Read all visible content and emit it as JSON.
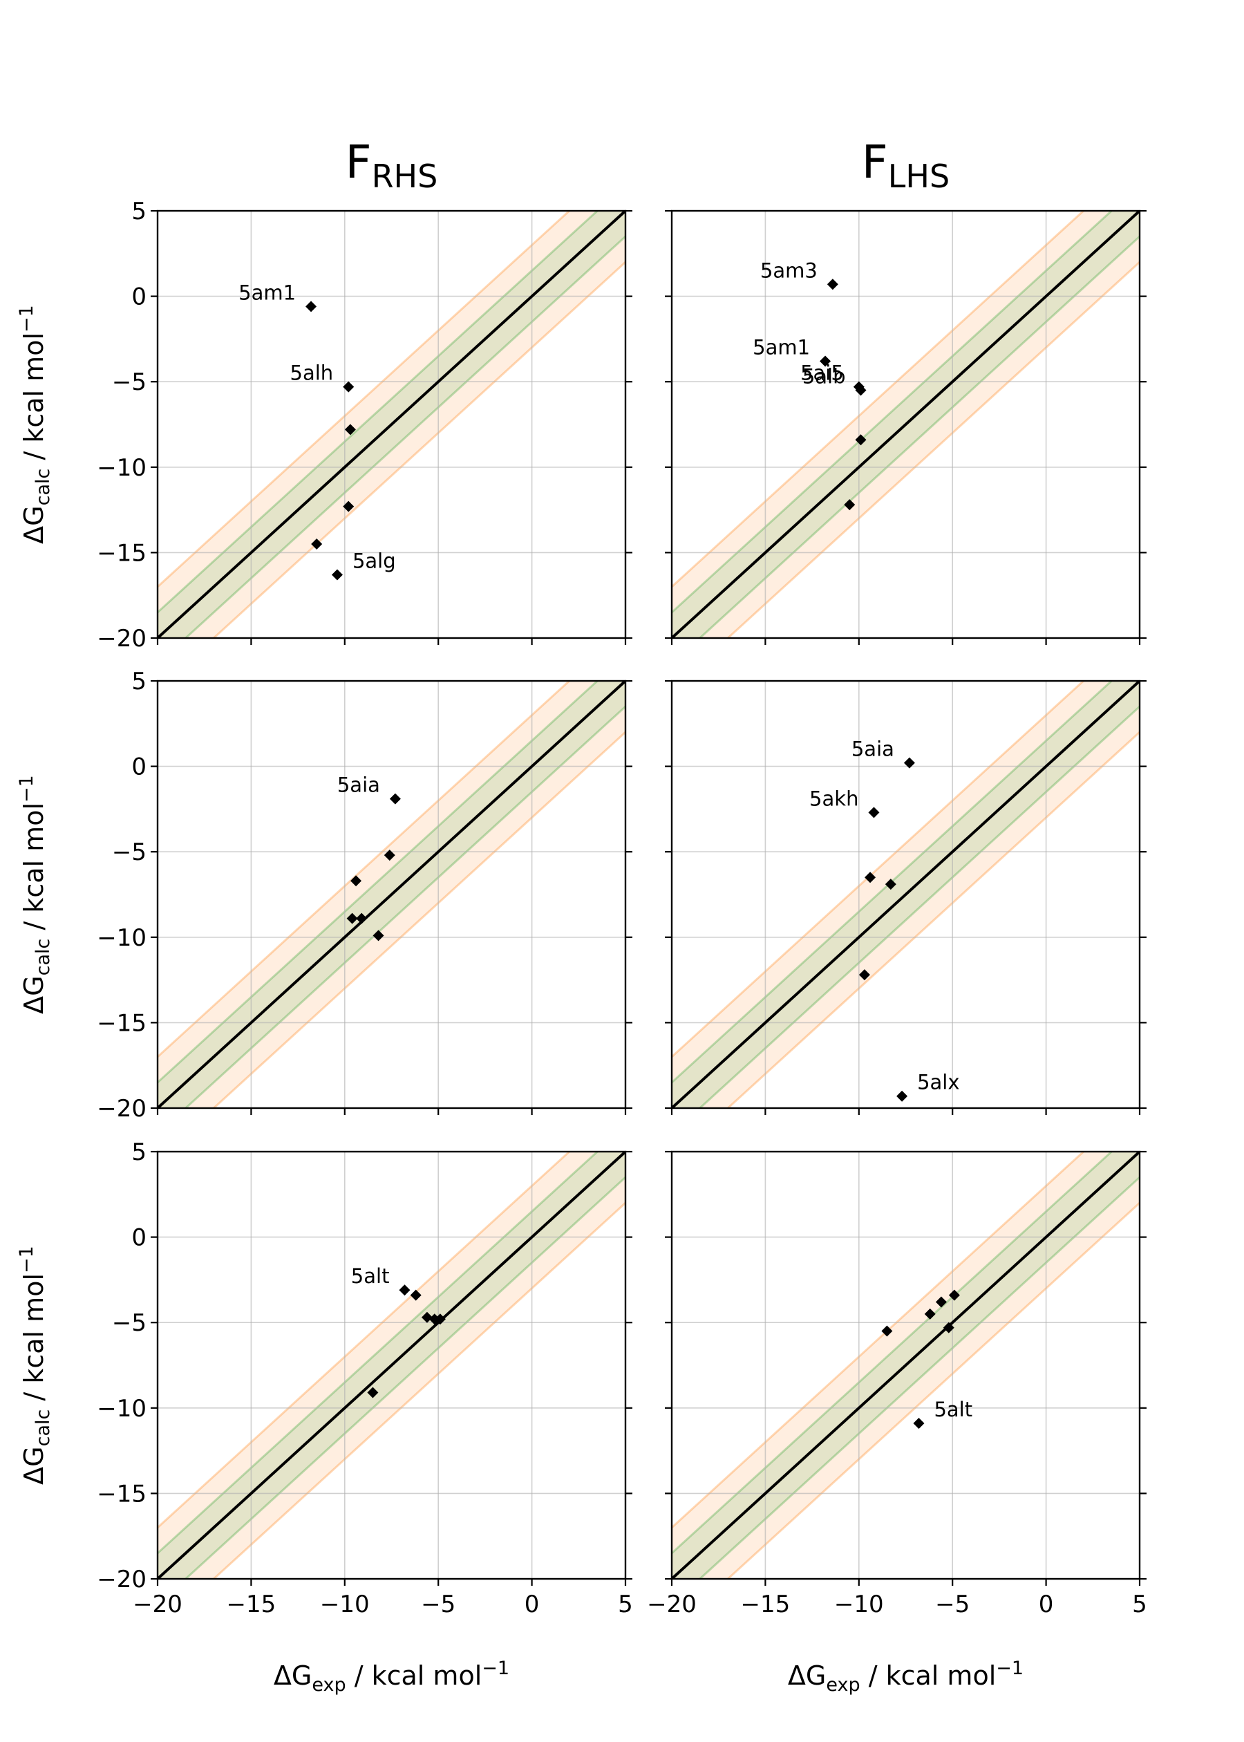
{
  "figure": {
    "columns": [
      {
        "title_main": "F",
        "title_sub": "RHS"
      },
      {
        "title_main": "F",
        "title_sub": "LHS"
      }
    ],
    "ylabel": {
      "main": "ΔG",
      "sub": "calc",
      "rest": " / kcal mol",
      "sup": "−1"
    },
    "xlabel": {
      "main": "ΔG",
      "sub": "exp",
      "rest": " / kcal mol",
      "sup": "−1"
    },
    "colors": {
      "identity": "#000000",
      "band1": "#2ca02c",
      "band2": "#ff7f0e",
      "grid": "#b0b0b0",
      "points": "#000000"
    }
  },
  "chart_data": [
    {
      "type": "scatter",
      "row": 0,
      "col": 0,
      "xlim": [
        -20,
        5
      ],
      "ylim": [
        -20,
        5
      ],
      "xticks": [
        "−20",
        "−15",
        "−10",
        "−5",
        "0",
        "5"
      ],
      "yticks": [
        "−20",
        "−15",
        "−10",
        "−5",
        "0",
        "5"
      ],
      "identity_line": true,
      "bands": [
        1.5,
        3.0
      ],
      "grid": true,
      "points": [
        {
          "x": -11.8,
          "y": -0.6,
          "label": "5am1"
        },
        {
          "x": -9.8,
          "y": -5.3,
          "label": "5alh"
        },
        {
          "x": -9.7,
          "y": -7.8,
          "label": ""
        },
        {
          "x": -9.8,
          "y": -12.3,
          "label": ""
        },
        {
          "x": -11.5,
          "y": -14.5,
          "label": ""
        },
        {
          "x": -10.4,
          "y": -16.3,
          "label": "5alg"
        }
      ]
    },
    {
      "type": "scatter",
      "row": 0,
      "col": 1,
      "xlim": [
        -20,
        5
      ],
      "ylim": [
        -20,
        5
      ],
      "xticks": [
        "−20",
        "−15",
        "−10",
        "−5",
        "0",
        "5"
      ],
      "yticks": [
        "−20",
        "−15",
        "−10",
        "−5",
        "0",
        "5"
      ],
      "identity_line": true,
      "bands": [
        1.5,
        3.0
      ],
      "grid": true,
      "points": [
        {
          "x": -11.4,
          "y": 0.7,
          "label": "5am3"
        },
        {
          "x": -11.8,
          "y": -3.8,
          "label": "5am1"
        },
        {
          "x": -10.0,
          "y": -5.3,
          "label": "5ai5"
        },
        {
          "x": -9.9,
          "y": -5.5,
          "label": "5alb"
        },
        {
          "x": -9.9,
          "y": -8.4,
          "label": ""
        },
        {
          "x": -10.5,
          "y": -12.2,
          "label": ""
        }
      ]
    },
    {
      "type": "scatter",
      "row": 1,
      "col": 0,
      "xlim": [
        -20,
        5
      ],
      "ylim": [
        -20,
        5
      ],
      "xticks": [
        "−20",
        "−15",
        "−10",
        "−5",
        "0",
        "5"
      ],
      "yticks": [
        "−20",
        "−15",
        "−10",
        "−5",
        "0",
        "5"
      ],
      "identity_line": true,
      "bands": [
        1.5,
        3.0
      ],
      "grid": true,
      "points": [
        {
          "x": -7.3,
          "y": -1.9,
          "label": "5aia"
        },
        {
          "x": -7.6,
          "y": -5.2,
          "label": ""
        },
        {
          "x": -9.4,
          "y": -6.7,
          "label": ""
        },
        {
          "x": -9.6,
          "y": -8.9,
          "label": ""
        },
        {
          "x": -9.1,
          "y": -8.9,
          "label": ""
        },
        {
          "x": -8.2,
          "y": -9.9,
          "label": ""
        }
      ]
    },
    {
      "type": "scatter",
      "row": 1,
      "col": 1,
      "xlim": [
        -20,
        5
      ],
      "ylim": [
        -20,
        5
      ],
      "xticks": [
        "−20",
        "−15",
        "−10",
        "−5",
        "0",
        "5"
      ],
      "yticks": [
        "−20",
        "−15",
        "−10",
        "−5",
        "0",
        "5"
      ],
      "identity_line": true,
      "bands": [
        1.5,
        3.0
      ],
      "grid": true,
      "points": [
        {
          "x": -7.3,
          "y": 0.2,
          "label": "5aia"
        },
        {
          "x": -9.2,
          "y": -2.7,
          "label": "5akh"
        },
        {
          "x": -9.4,
          "y": -6.5,
          "label": ""
        },
        {
          "x": -8.3,
          "y": -6.9,
          "label": ""
        },
        {
          "x": -9.7,
          "y": -12.2,
          "label": ""
        },
        {
          "x": -7.7,
          "y": -19.3,
          "label": "5alx"
        }
      ]
    },
    {
      "type": "scatter",
      "row": 2,
      "col": 0,
      "xlim": [
        -20,
        5
      ],
      "ylim": [
        -20,
        5
      ],
      "xticks": [
        "−20",
        "−15",
        "−10",
        "−5",
        "0",
        "5"
      ],
      "yticks": [
        "−20",
        "−15",
        "−10",
        "−5",
        "0",
        "5"
      ],
      "identity_line": true,
      "bands": [
        1.5,
        3.0
      ],
      "grid": true,
      "points": [
        {
          "x": -6.8,
          "y": -3.1,
          "label": "5alt"
        },
        {
          "x": -6.2,
          "y": -3.4,
          "label": ""
        },
        {
          "x": -5.6,
          "y": -4.7,
          "label": ""
        },
        {
          "x": -5.2,
          "y": -4.8,
          "label": ""
        },
        {
          "x": -4.9,
          "y": -4.8,
          "label": ""
        },
        {
          "x": -8.5,
          "y": -9.1,
          "label": ""
        }
      ]
    },
    {
      "type": "scatter",
      "row": 2,
      "col": 1,
      "xlim": [
        -20,
        5
      ],
      "ylim": [
        -20,
        5
      ],
      "xticks": [
        "−20",
        "−15",
        "−10",
        "−5",
        "0",
        "5"
      ],
      "yticks": [
        "−20",
        "−15",
        "−10",
        "−5",
        "0",
        "5"
      ],
      "identity_line": true,
      "bands": [
        1.5,
        3.0
      ],
      "grid": true,
      "points": [
        {
          "x": -8.5,
          "y": -5.5,
          "label": ""
        },
        {
          "x": -6.2,
          "y": -4.5,
          "label": ""
        },
        {
          "x": -5.6,
          "y": -3.8,
          "label": ""
        },
        {
          "x": -4.9,
          "y": -3.4,
          "label": ""
        },
        {
          "x": -5.2,
          "y": -5.3,
          "label": ""
        },
        {
          "x": -6.8,
          "y": -10.9,
          "label": "5alt"
        }
      ]
    }
  ]
}
